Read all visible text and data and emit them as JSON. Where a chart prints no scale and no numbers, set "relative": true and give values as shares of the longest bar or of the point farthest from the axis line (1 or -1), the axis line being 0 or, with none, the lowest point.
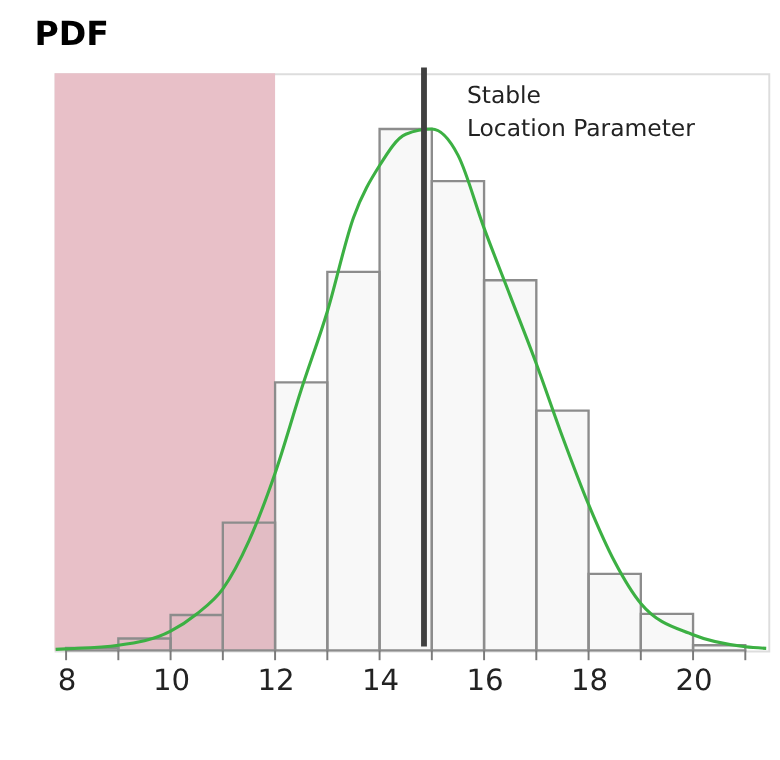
{
  "chart_data": {
    "type": "histogram",
    "title": "PDF",
    "relative": true,
    "grid": false,
    "bins": [
      8,
      9,
      10,
      11,
      12,
      13,
      14,
      15,
      16,
      17,
      18,
      19,
      20,
      21
    ],
    "values": [
      0.005,
      0.023,
      0.068,
      0.245,
      0.514,
      0.726,
      1,
      0.9,
      0.71,
      0.46,
      0.147,
      0.07,
      0.01
    ],
    "color": "#8c8c8c",
    "series": [
      {
        "type": "line",
        "color": "#3cb043",
        "x": [
          7.8,
          8,
          9,
          10,
          10.5,
          11,
          11.5,
          12,
          12.5,
          13,
          13.5,
          14,
          14.5,
          15,
          15.5,
          16,
          16.5,
          17,
          17.5,
          18,
          18.5,
          19,
          20,
          21,
          21.4
        ],
        "values": [
          0.002,
          0.003,
          0.01,
          0.037,
          0.07,
          0.118,
          0.21,
          0.34,
          0.5,
          0.65,
          0.83,
          0.93,
          0.99,
          1.0,
          0.95,
          0.81,
          0.68,
          0.55,
          0.41,
          0.28,
          0.17,
          0.09,
          0.03,
          0.007,
          0.004
        ]
      }
    ],
    "xlim": [
      7.78,
      21.44
    ],
    "xticks": [
      8,
      {
        "value": 9,
        "label": null
      },
      10,
      {
        "value": 11,
        "label": null
      },
      12,
      {
        "value": 13,
        "label": null
      },
      14,
      {
        "value": 15,
        "label": null
      },
      16,
      {
        "value": 17,
        "label": null
      },
      18,
      {
        "value": 19,
        "label": null
      },
      20,
      {
        "value": 21,
        "label": null
      }
    ],
    "tick_labels": "x",
    "ref_lines": [
      {
        "axis": "x",
        "value": 14.85,
        "label": "Stable Location Parameter",
        "color": "#404040"
      }
    ],
    "bands": [
      {
        "axis": "x",
        "from": 7.78,
        "to": 12,
        "color": "#e8c0c8"
      }
    ]
  }
}
